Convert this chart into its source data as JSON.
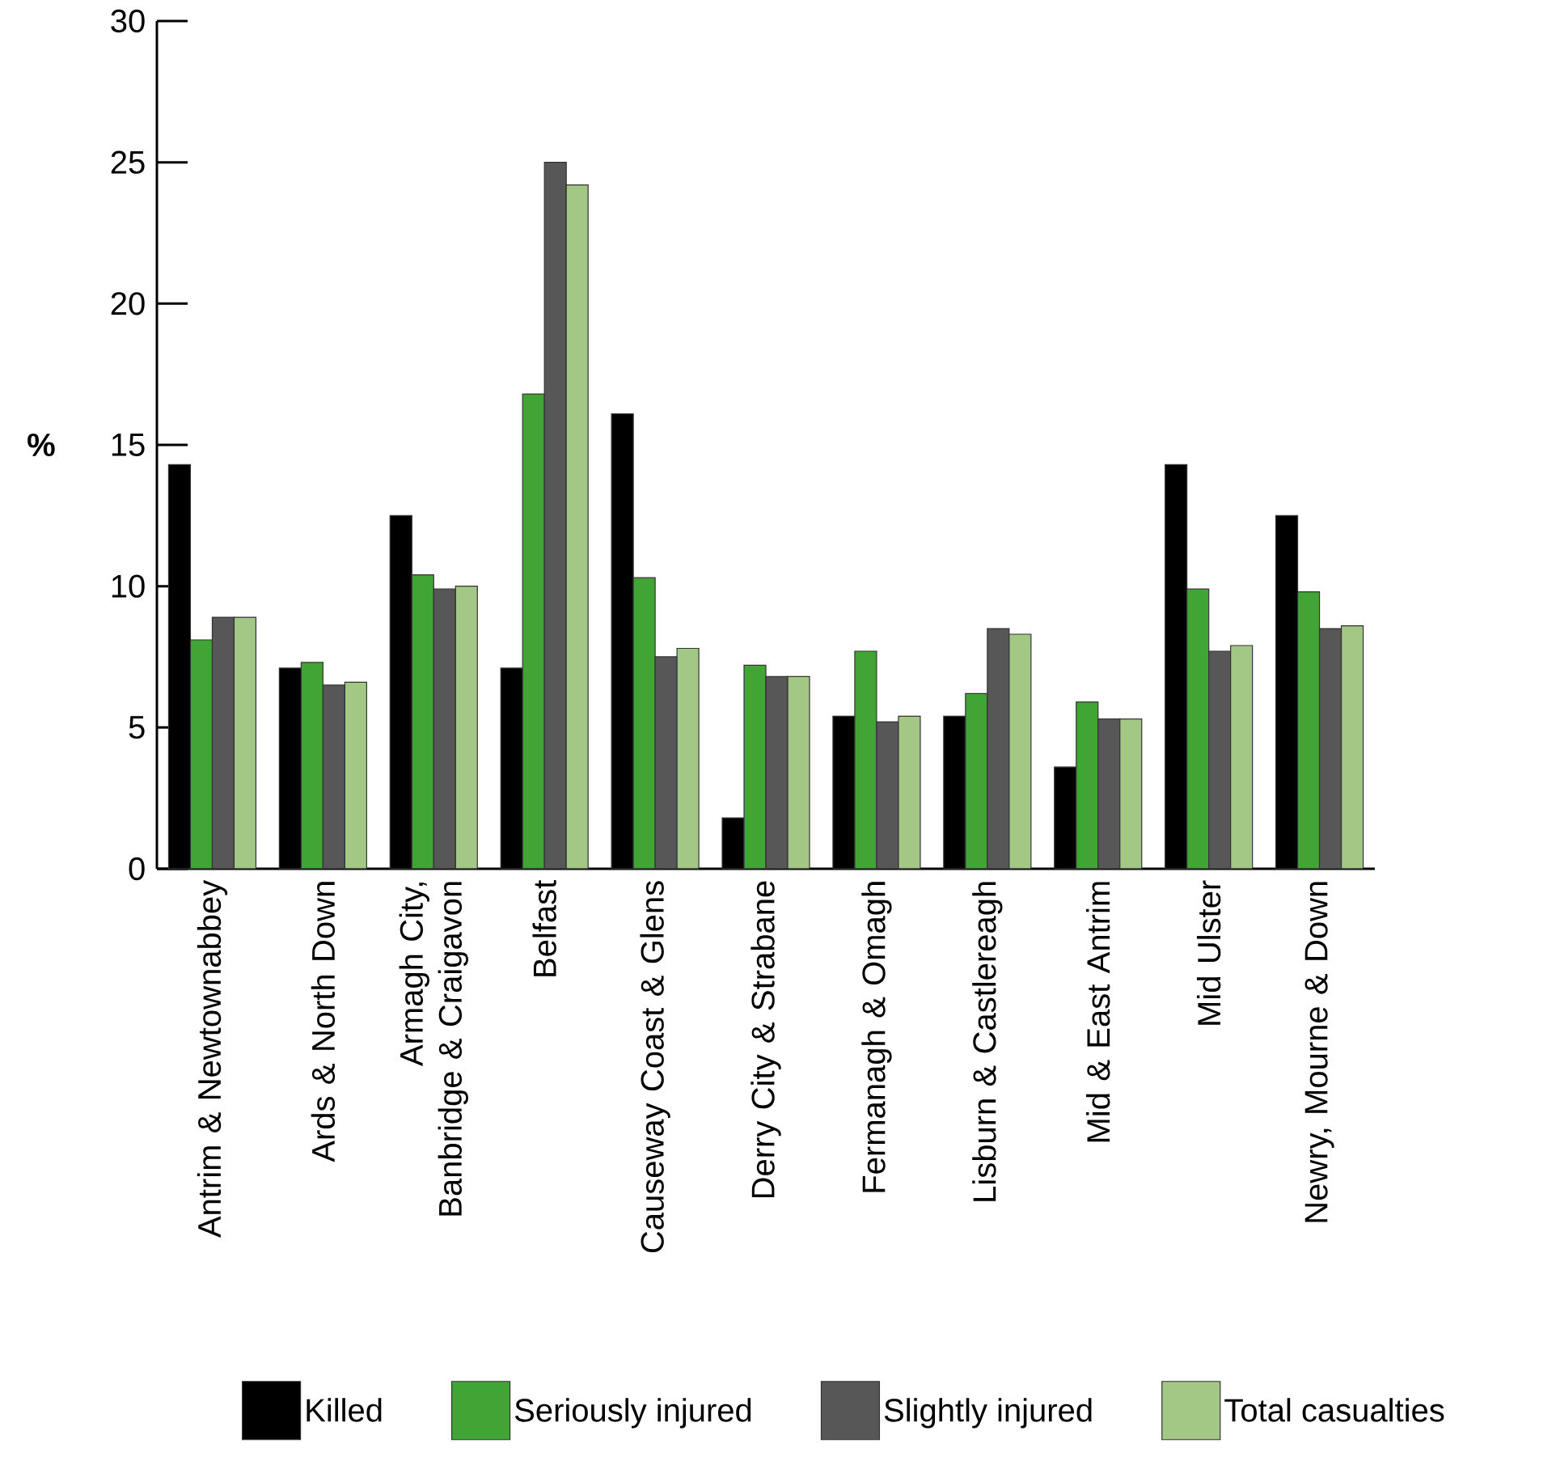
{
  "chart_data": {
    "type": "bar",
    "ylabel": "%",
    "categories": [
      "Antrim & Newtownabbey",
      "Ards & North Down",
      "Armagh City, Banbridge & Craigavon",
      "Belfast",
      "Causeway Coast & Glens",
      "Derry City & Strabane",
      "Fermanagh & Omagh",
      "Lisburn & Castlereagh",
      "Mid & East Antrim",
      "Mid Ulster",
      "Newry, Mourne & Down"
    ],
    "series": [
      {
        "name": "Killed",
        "color": "#000000",
        "values": [
          14.3,
          7.1,
          12.5,
          7.1,
          16.1,
          1.8,
          5.4,
          5.4,
          3.6,
          14.3,
          12.5
        ]
      },
      {
        "name": "Seriously injured",
        "color": "#41a535",
        "values": [
          8.1,
          7.3,
          10.4,
          16.8,
          10.3,
          7.2,
          7.7,
          6.2,
          5.9,
          9.9,
          9.8
        ]
      },
      {
        "name": "Slightly injured",
        "color": "#575757",
        "values": [
          8.9,
          6.5,
          9.9,
          25.0,
          7.5,
          6.8,
          5.2,
          8.5,
          5.3,
          7.7,
          8.5
        ]
      },
      {
        "name": "Total casualties",
        "color": "#a3c785",
        "values": [
          8.9,
          6.6,
          10.0,
          24.2,
          7.8,
          6.8,
          5.4,
          8.3,
          5.3,
          7.9,
          8.6
        ]
      }
    ],
    "ylim": [
      0,
      30
    ],
    "yticks": [
      0,
      5,
      10,
      15,
      20,
      25,
      30
    ],
    "grid": false,
    "legend": "bottom"
  }
}
